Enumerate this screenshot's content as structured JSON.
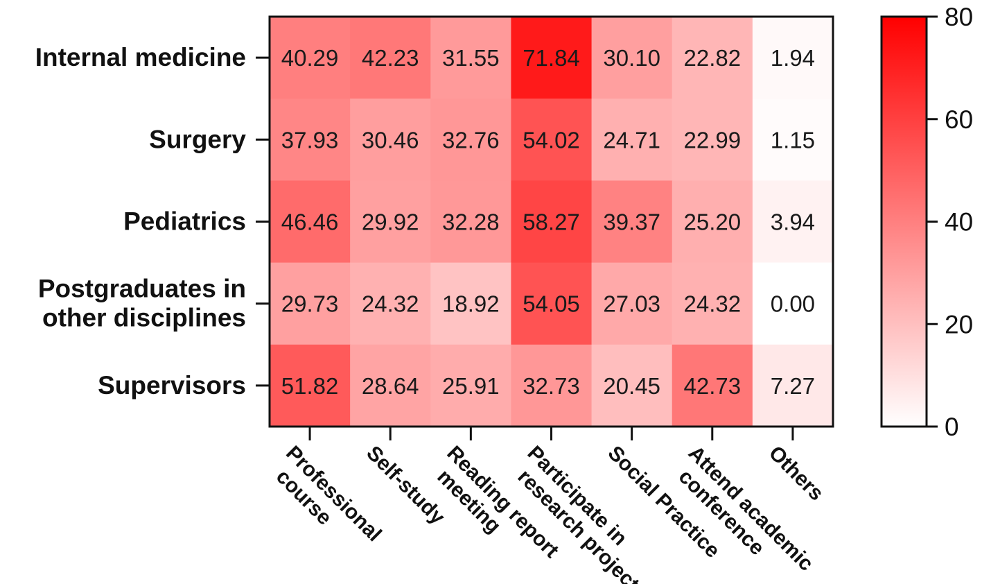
{
  "chart_data": {
    "type": "heatmap",
    "rows": [
      "Internal medicine",
      "Surgery",
      "Pediatrics",
      "Postgraduates in other disciplines",
      "Supervisors"
    ],
    "row_label_lines": [
      [
        "Internal medicine"
      ],
      [
        "Surgery"
      ],
      [
        "Pediatrics"
      ],
      [
        "Postgraduates in",
        "other disciplines"
      ],
      [
        "Supervisors"
      ]
    ],
    "columns": [
      "Professional course",
      "Self-study",
      "Reading report meeting",
      "Participate in research project",
      "Social Practice",
      "Attend academic conference",
      "Others"
    ],
    "column_label_lines": [
      [
        "Professional",
        "course"
      ],
      [
        "Self-study"
      ],
      [
        "Reading report",
        "meeting"
      ],
      [
        "Participate in",
        "research project"
      ],
      [
        "Social Practice"
      ],
      [
        "Attend academic",
        "conference"
      ],
      [
        "Others"
      ]
    ],
    "values": [
      [
        "40.29",
        "42.23",
        "31.55",
        "71.84",
        "30.10",
        "22.82",
        "1.94"
      ],
      [
        "37.93",
        "30.46",
        "32.76",
        "54.02",
        "24.71",
        "22.99",
        "1.15"
      ],
      [
        "46.46",
        "29.92",
        "32.28",
        "58.27",
        "39.37",
        "25.20",
        "3.94"
      ],
      [
        "29.73",
        "24.32",
        "18.92",
        "54.05",
        "27.03",
        "24.32",
        "0.00"
      ],
      [
        "51.82",
        "28.64",
        "25.91",
        "32.73",
        "20.45",
        "42.73",
        "7.27"
      ]
    ],
    "colorbar": {
      "min": 0,
      "max": 80,
      "ticks": [
        "0",
        "20",
        "40",
        "60",
        "80"
      ],
      "low_color": "#ffffff",
      "high_color": "#ff0000"
    }
  }
}
